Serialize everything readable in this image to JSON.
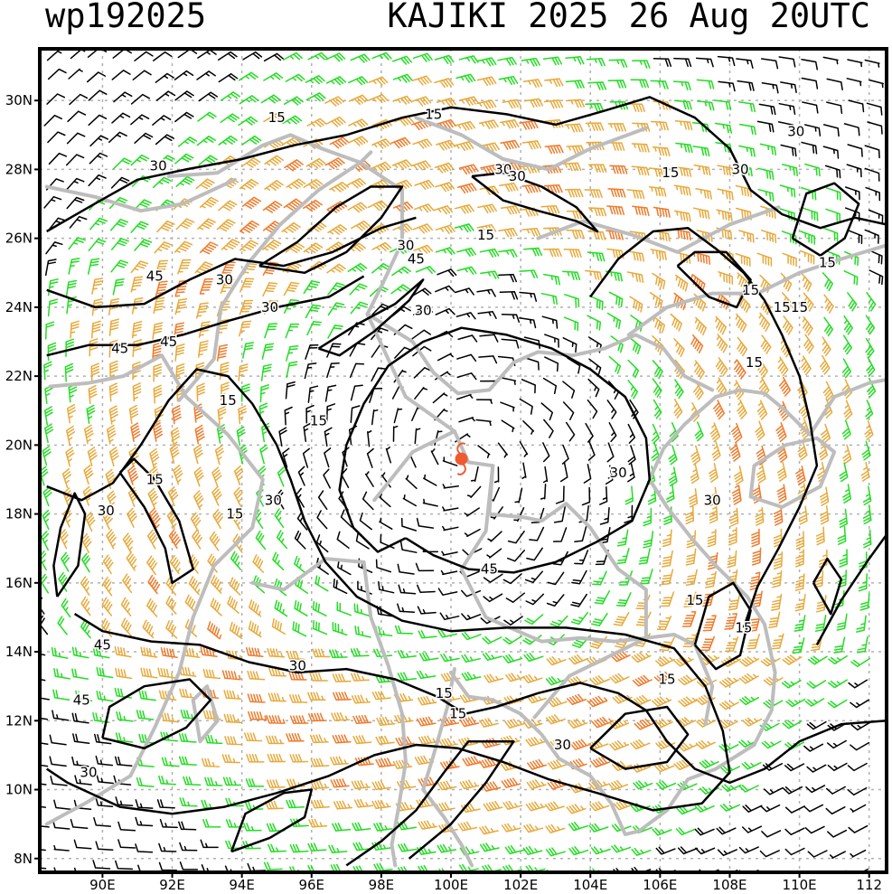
{
  "title": {
    "storm_id": "wp192025",
    "name_time": "KAJIKI 2025 26 Aug 20UTC"
  },
  "map": {
    "lon_ticks": [
      "90E",
      "92E",
      "94E",
      "96E",
      "98E",
      "100E",
      "102E",
      "104E",
      "106E",
      "108E",
      "110E",
      "112"
    ],
    "lat_ticks": [
      "30N",
      "28N",
      "26N",
      "24N",
      "22N",
      "20N",
      "18N",
      "16N",
      "14N",
      "12N",
      "10N",
      "8N"
    ],
    "lon_range": [
      88.2,
      112.5
    ],
    "lat_range": [
      7.6,
      31.5
    ],
    "storm_center": {
      "lon": 100.3,
      "lat": 19.6
    },
    "colors": {
      "contour": "#000000",
      "coastline": "#bdbdbd",
      "grid": "#b0b0b0",
      "barb_weak": "#000000",
      "barb_moderate": "#22dd22",
      "barb_strong": "#e8a93a",
      "barb_very_strong": "#f07a2a",
      "storm_marker": "#f05a30"
    },
    "contour_labels": [
      "15",
      "15",
      "30",
      "30",
      "30",
      "30",
      "45",
      "15",
      "30",
      "45",
      "30",
      "45",
      "30",
      "45",
      "30",
      "15",
      "30",
      "15",
      "15",
      "15",
      "15",
      "15",
      "15",
      "15",
      "15",
      "30",
      "30",
      "15",
      "30",
      "30",
      "45",
      "45",
      "30",
      "45",
      "30",
      "15",
      "15",
      "30",
      "15",
      "15",
      "15"
    ]
  }
}
